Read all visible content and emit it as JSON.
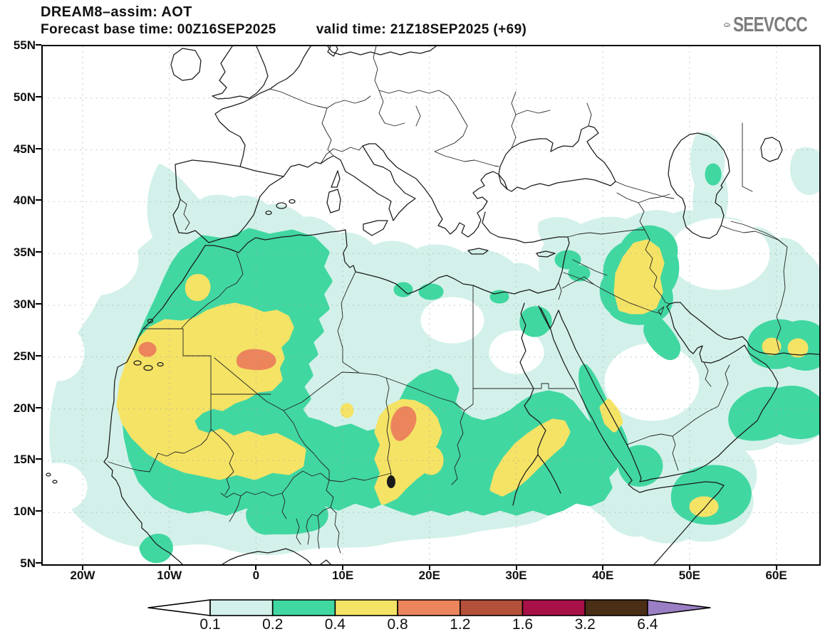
{
  "header": {
    "title": "DREAM8–assim: AOT",
    "forecast_base": "Forecast base time: 00Z16SEP2025",
    "valid_time": "valid time: 21Z18SEP2025 (+69)",
    "logo_text": "SEEVCCC"
  },
  "axes": {
    "lat_labels": [
      "55N",
      "50N",
      "45N",
      "40N",
      "35N",
      "30N",
      "25N",
      "20N",
      "15N",
      "10N",
      "5N"
    ],
    "lon_labels": [
      "20W",
      "10W",
      "0",
      "10E",
      "20E",
      "30E",
      "40E",
      "50E",
      "60E"
    ]
  },
  "colorbar": {
    "levels": [
      "0.1",
      "0.2",
      "0.4",
      "0.8",
      "1.2",
      "1.6",
      "3.2",
      "6.4"
    ],
    "segment_colors": [
      "#d3f1ea",
      "#41d7a1",
      "#f5e366",
      "#ec845c",
      "#b5503a",
      "#a81048",
      "#4a2e15"
    ],
    "below_min_color": "#ffffff",
    "above_max_color": "#9b7fc4"
  },
  "palette": {
    "cyan": "#d3f1ea",
    "teal": "#41d7a1",
    "yellow": "#f5e366",
    "orange": "#ec845c",
    "brick": "#b5503a",
    "crimson": "#a81048",
    "brown": "#4a2e15",
    "purple": "#9b7fc4",
    "coast": "#1a1a1a",
    "logo_gray": "#7d7d7d"
  },
  "chart_data": {
    "type": "heatmap",
    "title": "DREAM8–assim: AOT",
    "legend_levels": [
      0.1,
      0.2,
      0.4,
      0.8,
      1.2,
      1.6,
      3.2,
      6.4
    ],
    "lat_ticks": [
      55,
      50,
      45,
      40,
      35,
      30,
      25,
      20,
      15,
      10,
      5
    ],
    "lon_ticks": [
      -20,
      -10,
      0,
      10,
      20,
      30,
      40,
      50,
      60
    ],
    "grid": "dotted"
  }
}
